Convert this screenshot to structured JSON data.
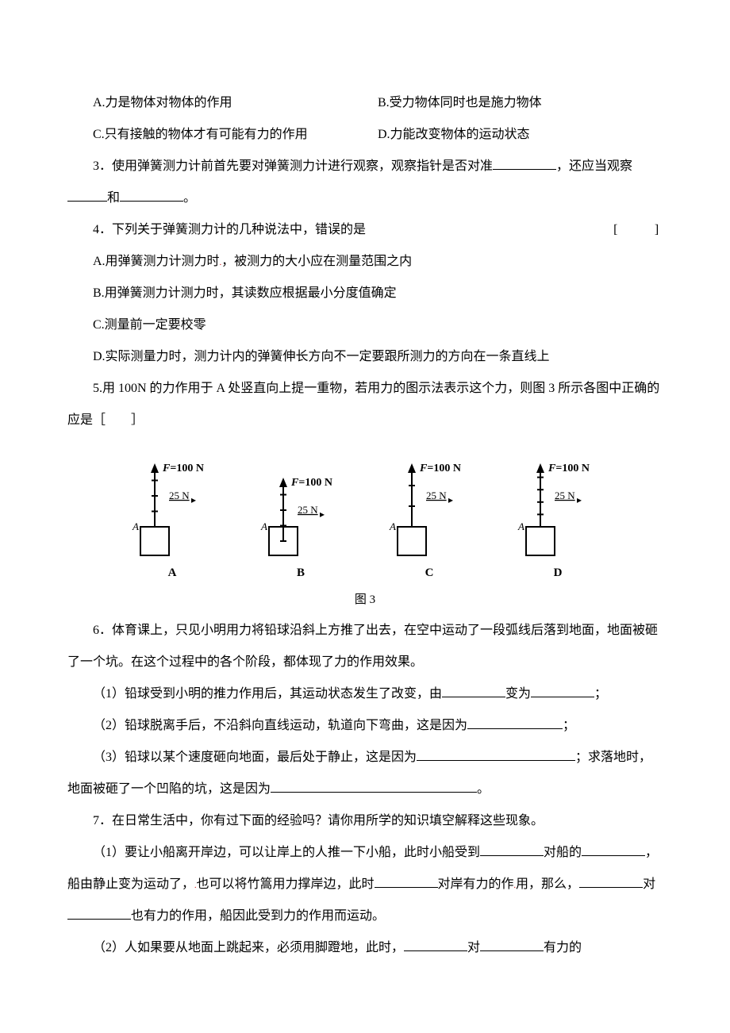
{
  "q2_options": {
    "A": "A.力是物体对物体的作用",
    "B": "B.受力物体同时也是施力物体",
    "C": "C.只有接触的物体才有可能有力的作用",
    "D": "D.力能改变物体的运动状态"
  },
  "q3": {
    "prefix": "3．使用弹簧测力计前首先要对弹簧测力计进行观察，观察指针是否对准",
    "mid": "，还应当观察 ",
    "mid2": "和",
    "suffix": "。"
  },
  "q4": {
    "stem": "4．下列关于弹簧测力计的几种说法中，错误的是",
    "bracket": "[　　]",
    "A": "A.用弹簧测力计测力时",
    "A2": "被测力的大小应在测量范围之内",
    "B": "B.用弹簧测力计测力时，其读数应根据最小分度值确定",
    "C": "C.测量前一定要校零",
    "D": "D.实际测量力时，测力计内的弹簧伸长方向不一定要跟所测力的方向在一条直线上"
  },
  "q5": {
    "stem_a": "5.用 100N 的力作用于 A 处竖直向上提一重物，若用力的图示法表示这个力，则图 3 所示各图中正确的应是［　　］",
    "figure": {
      "force_label": "F=100 N",
      "scale_label": "25 N",
      "point_label": "A",
      "sub_labels": [
        "A",
        "B",
        "C",
        "D"
      ],
      "caption": "图 3",
      "arrow_color": "#000000",
      "line_width": 2,
      "box_size": 36,
      "configs": [
        {
          "arrow_top_of_box": true,
          "ticks": 4
        },
        {
          "arrow_top_of_box": false,
          "ticks": 4
        },
        {
          "arrow_top_of_box": true,
          "ticks": 3
        },
        {
          "arrow_top_of_box": true,
          "ticks": 5
        }
      ]
    }
  },
  "q6": {
    "stem": "6．体育课上，只见小明用力将铅球沿斜上方推了出去，在空中运动了一段弧线后落到地面，地面被砸了一个坑。在这个过程中的各个阶段，都体现了力的作用效果。",
    "p1_a": "（1）铅球受到小明的推力作用后，其运动状态发生了改变，由",
    "p1_b": "变为",
    "p1_c": "；",
    "p2_a": "（2）铅球脱离手后，不沿斜向直线运动，轨道向下弯曲，这是因为",
    "p2_b": "；",
    "p3_a": "（3）铅球以某个速度砸向地面，最后处于静止，这是因为",
    "p3_b": "；求落地时，地面被砸了一个凹陷的坑，这是因为",
    "p3_c": "。"
  },
  "q7": {
    "stem": "7．在日常生活中，你有过下面的经验吗？请你用所学的知识填空解释这些现象。",
    "p1_a": "（1）要让小船离开岸边，可以让岸上的人推一下小船，此时小船受到",
    "p1_b": "对船的",
    "p1_c": "，船由静止变为运动了，",
    "p1_d": "也可以将竹篙用力撑岸边，此时",
    "p1_e": "对岸有力的作",
    "p1_f": "用，那么，",
    "p1_g": "对",
    "p1_h": "也有力的作用，船因此受到力的作用而运动。",
    "p2_a": "（2）人如果要从地面上跳起来，必须用脚蹬地，此时，",
    "p2_b": "对",
    "p2_c": "有力的"
  }
}
